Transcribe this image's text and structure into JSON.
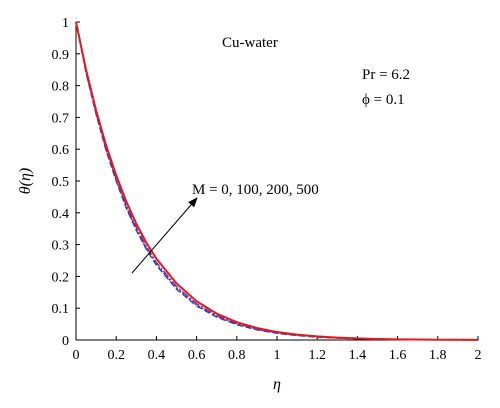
{
  "chart_data": {
    "type": "line",
    "title": "",
    "xlabel": "η",
    "ylabel": "θ(η)",
    "xlim": [
      0,
      2
    ],
    "ylim": [
      0,
      1
    ],
    "grid": false,
    "x_ticks": [
      "0",
      "0.2",
      "0.4",
      "0.6",
      "0.8",
      "1",
      "1.2",
      "1.4",
      "1.6",
      "1.8",
      "2"
    ],
    "y_ticks": [
      "0",
      "0.1",
      "0.2",
      "0.3",
      "0.4",
      "0.5",
      "0.6",
      "0.7",
      "0.8",
      "0.9",
      "1"
    ],
    "x": [
      0,
      0.05,
      0.1,
      0.15,
      0.2,
      0.25,
      0.3,
      0.35,
      0.4,
      0.5,
      0.6,
      0.7,
      0.8,
      0.9,
      1.0,
      1.1,
      1.2,
      1.3,
      1.4,
      1.5,
      1.6,
      1.7,
      1.8,
      1.9,
      2.0
    ],
    "series": [
      {
        "name": "M = 0",
        "color": "#1f3fbf",
        "dash": "6,3",
        "values": [
          1.0,
          0.84,
          0.71,
          0.595,
          0.5,
          0.415,
          0.345,
          0.285,
          0.235,
          0.16,
          0.107,
          0.072,
          0.048,
          0.032,
          0.021,
          0.014,
          0.009,
          0.006,
          0.004,
          0.0026,
          0.0017,
          0.0011,
          0.0007,
          0.0004,
          0.0002
        ]
      },
      {
        "name": "M = 100",
        "color": "#5a2fb0",
        "dash": "2,2",
        "values": [
          1.0,
          0.842,
          0.712,
          0.598,
          0.503,
          0.418,
          0.348,
          0.288,
          0.238,
          0.163,
          0.11,
          0.074,
          0.05,
          0.033,
          0.022,
          0.015,
          0.01,
          0.0065,
          0.0043,
          0.0028,
          0.0018,
          0.0012,
          0.0008,
          0.0005,
          0.0003
        ]
      },
      {
        "name": "M = 200",
        "color": "#7a2c90",
        "dash": "8,2,2,2",
        "values": [
          1.0,
          0.845,
          0.716,
          0.603,
          0.508,
          0.424,
          0.354,
          0.294,
          0.244,
          0.168,
          0.114,
          0.077,
          0.052,
          0.035,
          0.023,
          0.0155,
          0.0103,
          0.0068,
          0.0045,
          0.0029,
          0.0019,
          0.0013,
          0.0008,
          0.0005,
          0.0003
        ]
      },
      {
        "name": "M = 500",
        "color": "#e31a1c",
        "dash": "",
        "values": [
          1.0,
          0.85,
          0.722,
          0.612,
          0.518,
          0.436,
          0.366,
          0.306,
          0.256,
          0.178,
          0.122,
          0.083,
          0.056,
          0.038,
          0.025,
          0.017,
          0.0113,
          0.0075,
          0.005,
          0.0032,
          0.0021,
          0.0014,
          0.0009,
          0.0006,
          0.0003
        ]
      }
    ],
    "annotations": {
      "fluid": "Cu-water",
      "pr": "Pr = 6.2",
      "phi": "ϕ = 0.1",
      "m_values": "M = 0, 100, 200, 500"
    }
  }
}
